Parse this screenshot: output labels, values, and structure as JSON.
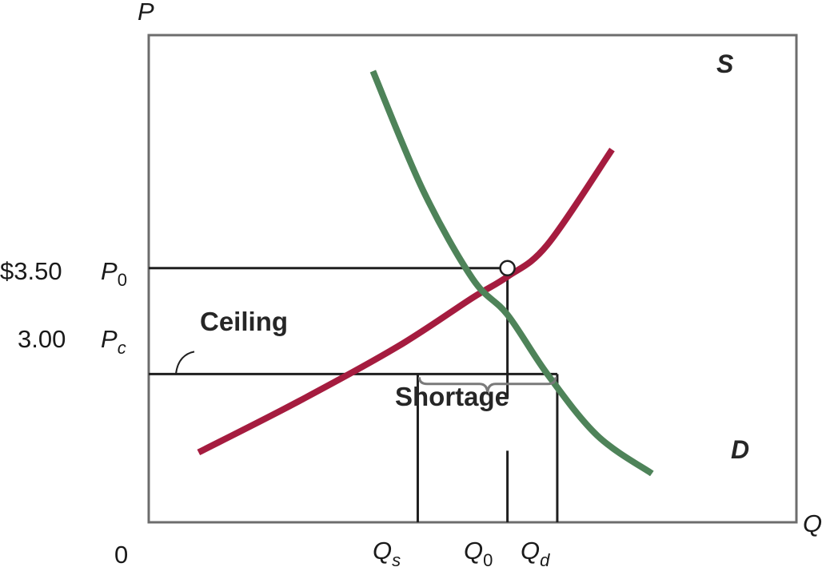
{
  "chart_data": {
    "type": "line",
    "title": "",
    "xlabel": "Q",
    "ylabel": "P",
    "origin_label": "0",
    "grid": false,
    "ylim": [
      2.3,
      4.6
    ],
    "series": [
      {
        "name": "S",
        "color": "#a51c3f",
        "x": [
          10.0,
          30.0,
          50.0,
          65.0,
          72.0,
          80.0,
          93.0
        ],
        "y": [
          2.63,
          2.87,
          3.13,
          3.36,
          3.46,
          3.61,
          4.06
        ]
      },
      {
        "name": "D",
        "color": "#4e8359",
        "x": [
          45.0,
          55.0,
          65.0,
          72.0,
          80.0,
          90.0,
          101.0
        ],
        "y": [
          4.43,
          3.87,
          3.45,
          3.28,
          3.0,
          2.71,
          2.53
        ]
      }
    ],
    "price_lines": [
      {
        "value": 3.5,
        "dollar_label": "$3.50",
        "symbol": "P",
        "subscript": "0"
      },
      {
        "value": 3.0,
        "dollar_label": "3.00",
        "symbol": "P",
        "subscript": "c"
      }
    ],
    "quantity_markers": [
      {
        "value": 54.0,
        "symbol": "Q",
        "subscript": "s"
      },
      {
        "value": 72.0,
        "symbol": "Q",
        "subscript": "0"
      },
      {
        "value": 82.0,
        "symbol": "Q",
        "subscript": "d"
      }
    ],
    "annotations": [
      {
        "text": "Ceiling",
        "refers_to": "price ceiling line at 3.00"
      },
      {
        "text": "Shortage",
        "refers_to": "gap between Qs and Qd at 3.00"
      }
    ],
    "equilibrium": {
      "x": 72.0,
      "y": 3.5
    },
    "colors": {
      "supply": "#a51c3f",
      "demand": "#4e8359",
      "axis": "#6d6d6d",
      "lines": "#1f1f1f",
      "brace": "#7a7a7a"
    }
  }
}
